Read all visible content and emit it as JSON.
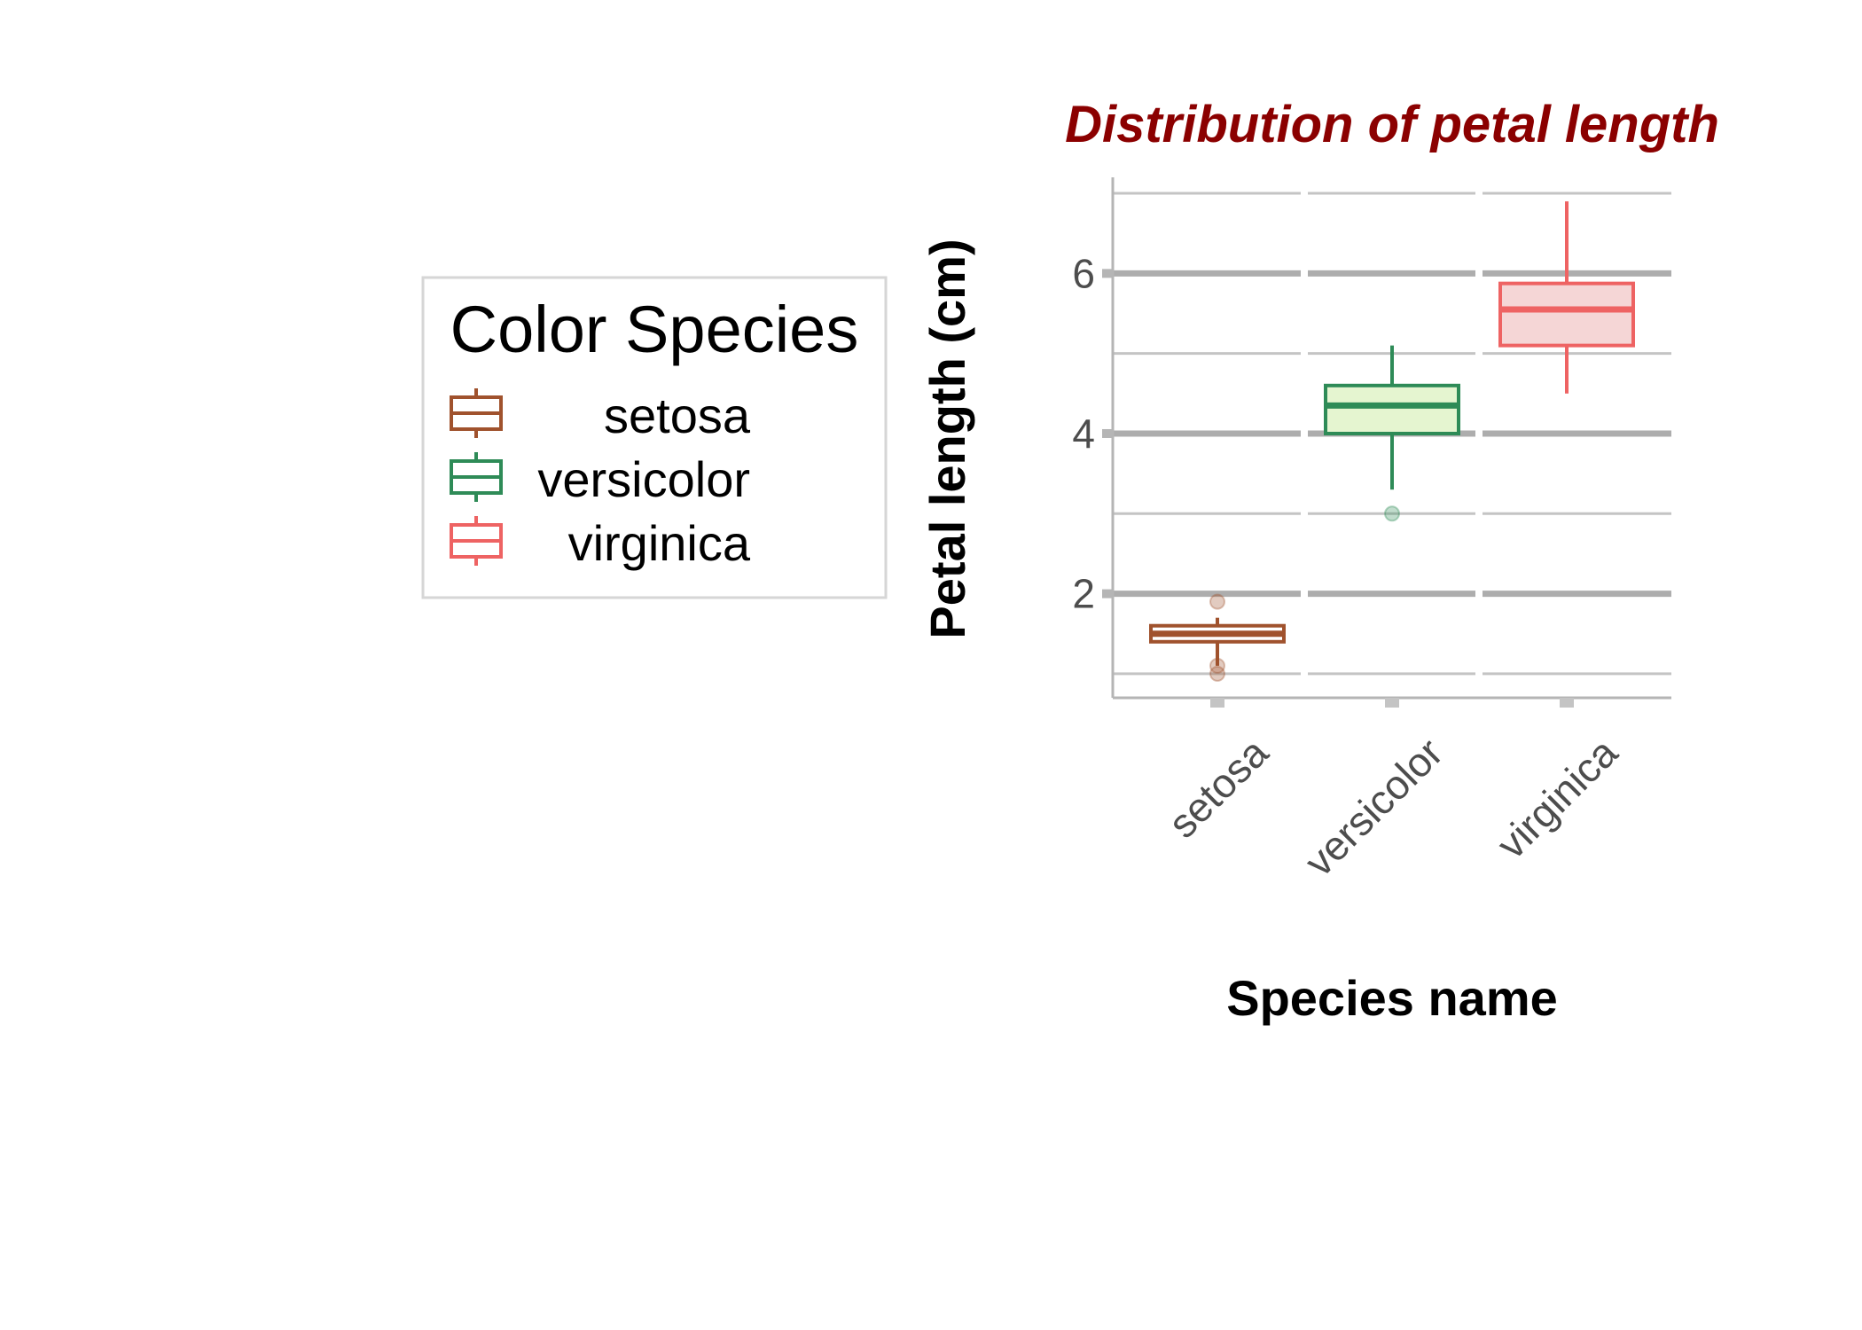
{
  "chart_data": {
    "type": "box",
    "title": "Distribution of petal length",
    "xlabel": "Species name",
    "ylabel": "Petal length (cm)",
    "ylim": [
      0.7,
      7.2
    ],
    "y_ticks": [
      2,
      4,
      6
    ],
    "categories": [
      "setosa",
      "versicolor",
      "virginica"
    ],
    "series": [
      {
        "name": "setosa",
        "min": 1.1,
        "q1": 1.4,
        "median": 1.5,
        "q3": 1.6,
        "max": 1.7,
        "outliers": [
          1.9,
          1.1,
          1.0
        ],
        "color": "#A0522D",
        "fill": "#FFFFFF"
      },
      {
        "name": "versicolor",
        "min": 3.3,
        "q1": 4.0,
        "median": 4.35,
        "q3": 4.6,
        "max": 5.1,
        "outliers": [
          3.0
        ],
        "color": "#2E8B57",
        "fill": "#E5F5D0"
      },
      {
        "name": "virginica",
        "min": 4.5,
        "q1": 5.1,
        "median": 5.55,
        "q3": 5.875,
        "max": 6.9,
        "outliers": [],
        "color": "#EE6363",
        "fill": "#F5D6D6"
      }
    ],
    "grid": true,
    "title_color": "#8B0000",
    "legend": {
      "title": "Color Species",
      "placement": "left",
      "items": [
        "setosa",
        "versicolor",
        "virginica"
      ]
    }
  }
}
